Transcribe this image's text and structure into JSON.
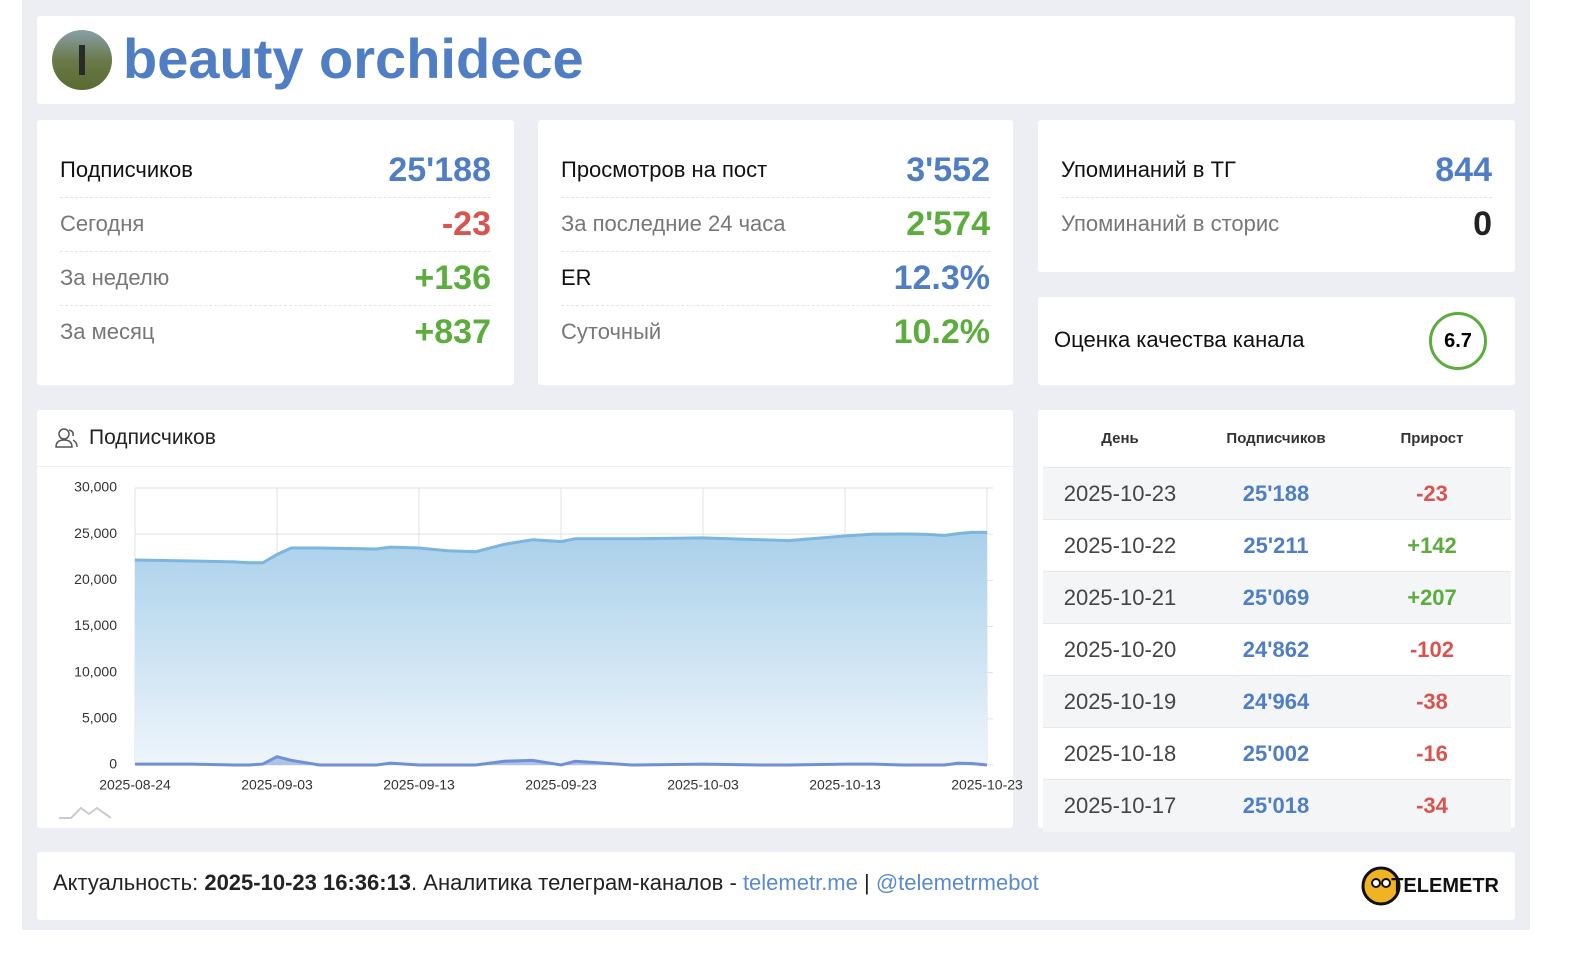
{
  "header": {
    "title": "beauty orchidece"
  },
  "stats": [
    {
      "rows": [
        {
          "label": "Подписчиков",
          "value": "25'188",
          "label_color": "#111",
          "color": "#4f7ec4"
        },
        {
          "label": "Сегодня",
          "value": "-23",
          "label_color": "#777",
          "color": "#d9534f"
        },
        {
          "label": "За неделю",
          "value": "+136",
          "label_color": "#777",
          "color": "#5cac3e"
        },
        {
          "label": "За месяц",
          "value": "+837",
          "label_color": "#777",
          "color": "#5cac3e"
        }
      ]
    },
    {
      "rows": [
        {
          "label": "Просмотров на пост",
          "value": "3'552",
          "label_color": "#111",
          "color": "#4f7ec4"
        },
        {
          "label": "За последние 24 часа",
          "value": "2'574",
          "label_color": "#777",
          "color": "#5cac3e"
        },
        {
          "label": "ER",
          "value": "12.3%",
          "label_color": "#111",
          "color": "#4f7ec4"
        },
        {
          "label": "Суточный",
          "value": "10.2%",
          "label_color": "#777",
          "color": "#5cac3e"
        }
      ]
    },
    {
      "rows": [
        {
          "label": "Упоминаний в ТГ",
          "value": "844",
          "label_color": "#111",
          "color": "#4f7ec4"
        },
        {
          "label": "Упоминаний в сторис",
          "value": "0",
          "label_color": "#777",
          "color": "#222"
        }
      ]
    }
  ],
  "quality": {
    "label": "Оценка качества канала",
    "score": 6.7
  },
  "chart_panel": {
    "title": "Подписчиков"
  },
  "chart_data": {
    "type": "area",
    "x": [
      "2025-08-24",
      "2025-08-28",
      "2025-08-31",
      "2025-09-01",
      "2025-09-02",
      "2025-09-03",
      "2025-09-04",
      "2025-09-06",
      "2025-09-10",
      "2025-09-11",
      "2025-09-13",
      "2025-09-15",
      "2025-09-17",
      "2025-09-19",
      "2025-09-21",
      "2025-09-23",
      "2025-09-24",
      "2025-09-28",
      "2025-10-03",
      "2025-10-07",
      "2025-10-09",
      "2025-10-13",
      "2025-10-15",
      "2025-10-17",
      "2025-10-18",
      "2025-10-19",
      "2025-10-20",
      "2025-10-21",
      "2025-10-22",
      "2025-10-23"
    ],
    "series": [
      {
        "color": "#7cb5de",
        "values": [
          22200,
          22100,
          22000,
          21900,
          21900,
          22800,
          23500,
          23500,
          23400,
          23600,
          23500,
          23200,
          23100,
          23900,
          24400,
          24200,
          24500,
          24500,
          24600,
          24400,
          24300,
          24800,
          25000,
          25018,
          25002,
          24964,
          24862,
          25069,
          25211,
          25188
        ]
      },
      {
        "color": "#6f8fd6",
        "values": [
          100,
          100,
          0,
          0,
          100,
          900,
          500,
          0,
          0,
          200,
          0,
          0,
          0,
          400,
          500,
          0,
          400,
          0,
          100,
          0,
          0,
          100,
          100,
          0,
          0,
          0,
          0,
          200,
          150,
          0
        ]
      }
    ],
    "xlim": [
      "2025-08-24",
      "2025-10-23"
    ],
    "xticks": [
      "2025-08-24",
      "2025-09-03",
      "2025-09-13",
      "2025-09-23",
      "2025-10-03",
      "2025-10-13",
      "2025-10-23"
    ],
    "ylim": [
      0,
      30000
    ],
    "yticks": [
      0,
      {
        "value": 5000,
        "label": "5,000"
      },
      {
        "value": 10000,
        "label": "10,000"
      },
      {
        "value": 15000,
        "label": "15,000"
      },
      {
        "value": 20000,
        "label": "20,000"
      },
      {
        "value": 25000,
        "label": "25,000"
      },
      {
        "value": 30000,
        "label": "30,000"
      }
    ],
    "grid": true
  },
  "table": {
    "headers": [
      "День",
      "Подписчиков",
      "Прирост"
    ],
    "rows": [
      [
        "2025-10-23",
        "25'188",
        "-23"
      ],
      [
        "2025-10-22",
        "25'211",
        "+142"
      ],
      [
        "2025-10-21",
        "25'069",
        "+207"
      ],
      [
        "2025-10-20",
        "24'862",
        "-102"
      ],
      [
        "2025-10-19",
        "24'964",
        "-38"
      ],
      [
        "2025-10-18",
        "25'002",
        "-16"
      ],
      [
        "2025-10-17",
        "25'018",
        "-34"
      ]
    ]
  },
  "footer": {
    "label": "Актуальность:",
    "timestamp": "2025-10-23 16:36:13",
    "text": ". Аналитика телеграм-каналов -",
    "site": "telemetr.me",
    "separator": "|",
    "bot": "@telemetrmebot",
    "logo": "TELEMETR"
  }
}
